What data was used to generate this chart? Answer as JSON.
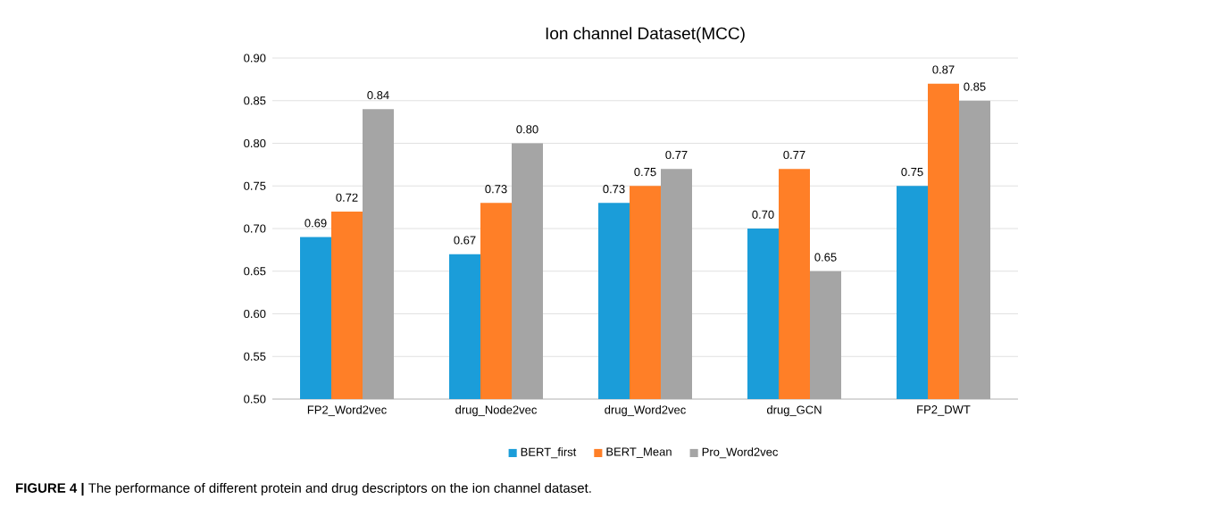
{
  "chart_data": {
    "type": "bar",
    "title": "Ion channel Dataset(MCC)",
    "categories": [
      "FP2_Word2vec",
      "drug_Node2vec",
      "drug_Word2vec",
      "drug_GCN",
      "FP2_DWT"
    ],
    "series": [
      {
        "name": "BERT_first",
        "color": "#1b9dd9",
        "values": [
          0.69,
          0.67,
          0.73,
          0.7,
          0.75
        ],
        "value_labels": [
          "0.69",
          "0.67",
          "0.73",
          "0.70",
          "0.75"
        ]
      },
      {
        "name": "BERT_Mean",
        "color": "#ff7f27",
        "values": [
          0.72,
          0.73,
          0.75,
          0.77,
          0.87
        ],
        "value_labels": [
          "0.72",
          "0.73",
          "0.75",
          "0.77",
          "0.87"
        ]
      },
      {
        "name": "Pro_Word2vec",
        "color": "#a5a5a5",
        "values": [
          0.84,
          0.8,
          0.77,
          0.65,
          0.85
        ],
        "value_labels": [
          "0.84",
          "0.80",
          "0.77",
          "0.65",
          "0.85"
        ]
      }
    ],
    "ylim": [
      0.5,
      0.9
    ],
    "yticks": [
      {
        "value": 0.5,
        "label": "0.50"
      },
      {
        "value": 0.55,
        "label": "0.55"
      },
      {
        "value": 0.6,
        "label": "0.60"
      },
      {
        "value": 0.65,
        "label": "0.65"
      },
      {
        "value": 0.7,
        "label": "0.70"
      },
      {
        "value": 0.75,
        "label": "0.75"
      },
      {
        "value": 0.8,
        "label": "0.80"
      },
      {
        "value": 0.85,
        "label": "0.85"
      },
      {
        "value": 0.9,
        "label": "0.90"
      }
    ],
    "grid": "y",
    "legend": "bottom",
    "annotations": [
      "**FIGURE 4 |** The performance of different protein and drug descriptors on the ion channel dataset."
    ]
  }
}
